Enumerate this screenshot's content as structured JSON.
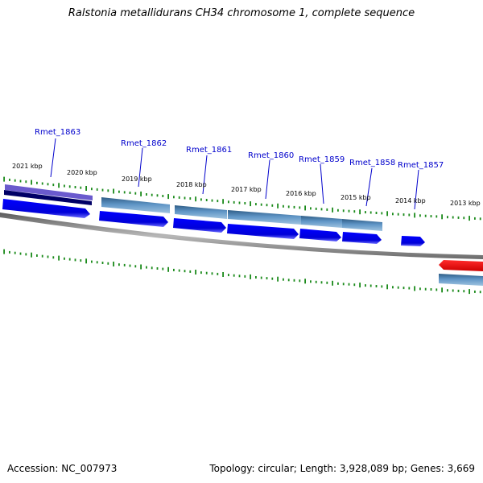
{
  "title": "Ralstonia metallidurans CH34 chromosome 1, complete sequence",
  "footer": {
    "accession": "Accession: NC_007973",
    "summary": "Topology: circular; Length: 3,928,089 bp; Genes: 3,669"
  },
  "kbp_labels": [
    "2021 kbp",
    "2020 kbp",
    "2019 kbp",
    "2018 kbp",
    "2017 kbp",
    "2016 kbp",
    "2015 kbp",
    "2014 kbp",
    "2013 kbp"
  ],
  "genes": [
    "Rmet_1863",
    "Rmet_1862",
    "Rmet_1861",
    "Rmet_1860",
    "Rmet_1859",
    "Rmet_1858",
    "Rmet_1857"
  ],
  "colors": {
    "gene_label": "#0000cc",
    "cds_blue": "#0000ee",
    "gene_steel": "#4a7fb0",
    "tick_green": "#1a8a1a",
    "backbone": "#808080",
    "highlight_red": "#ee0000",
    "purple_bar": "#6a5acd",
    "navy_bar": "#000066"
  }
}
